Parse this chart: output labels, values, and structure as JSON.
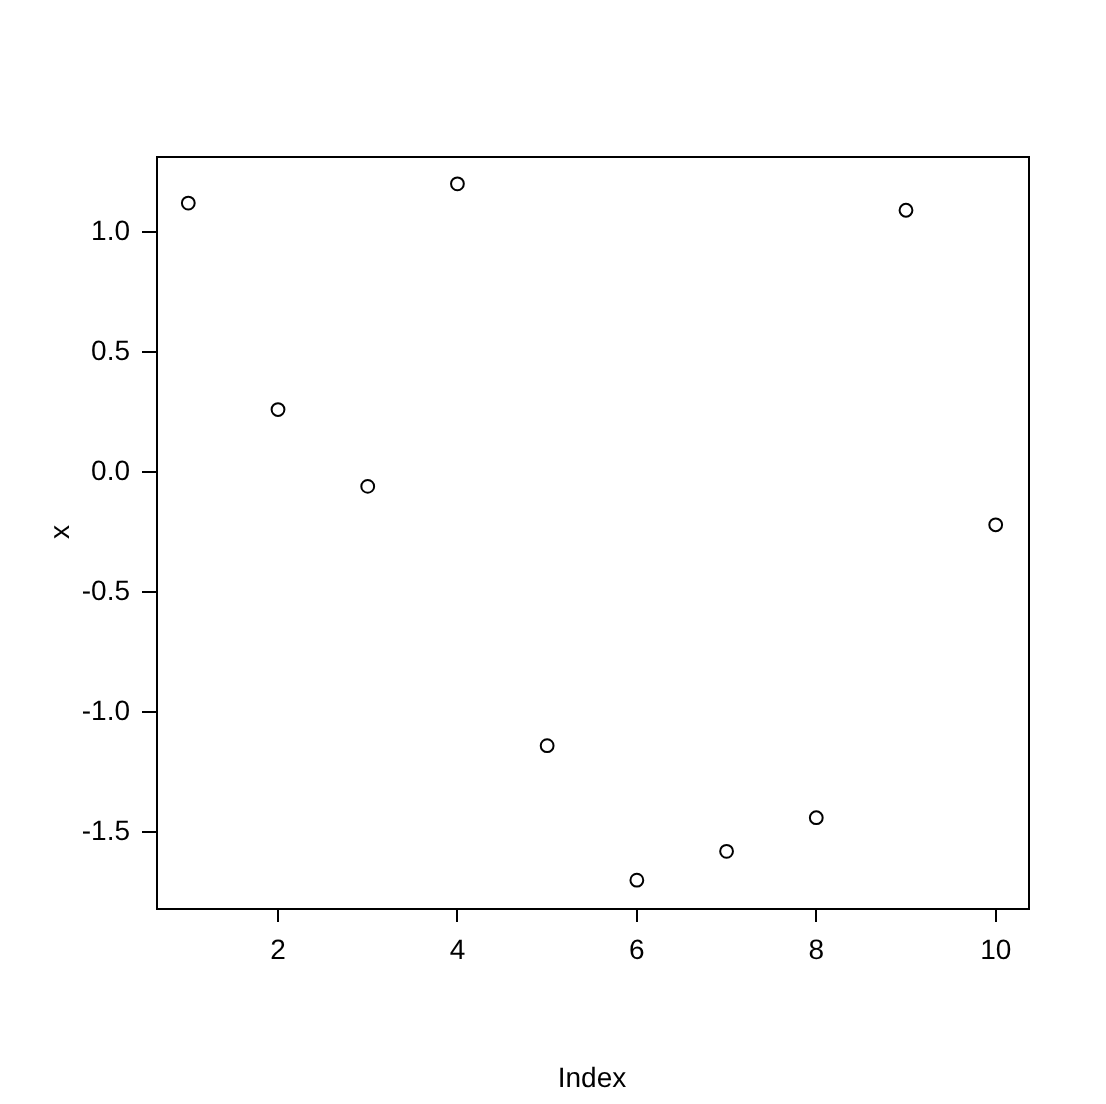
{
  "chart_data": {
    "type": "scatter",
    "xlabel": "Index",
    "ylabel": "x",
    "x": [
      1,
      2,
      3,
      4,
      5,
      6,
      7,
      8,
      9,
      10
    ],
    "series": [
      {
        "color": "#000000",
        "values": [
          1.12,
          0.26,
          -0.06,
          1.2,
          -1.14,
          -1.7,
          -1.58,
          -1.44,
          1.09,
          -0.22
        ]
      }
    ],
    "xlim": [
      0.64,
      10.36
    ],
    "ylim": [
      -1.816,
      1.316
    ],
    "xticks": [
      2,
      4,
      6,
      8,
      10
    ],
    "yticks": [
      {
        "value": -1.5,
        "label": "-1.5"
      },
      {
        "value": -1,
        "label": "-1.0"
      },
      {
        "value": -0.5,
        "label": "-0.5"
      },
      {
        "value": 0,
        "label": "0.0"
      },
      {
        "value": 0.5,
        "label": "0.5"
      },
      {
        "value": 1,
        "label": "1.0"
      }
    ],
    "grid": false,
    "legend": false,
    "marker": "circle"
  }
}
